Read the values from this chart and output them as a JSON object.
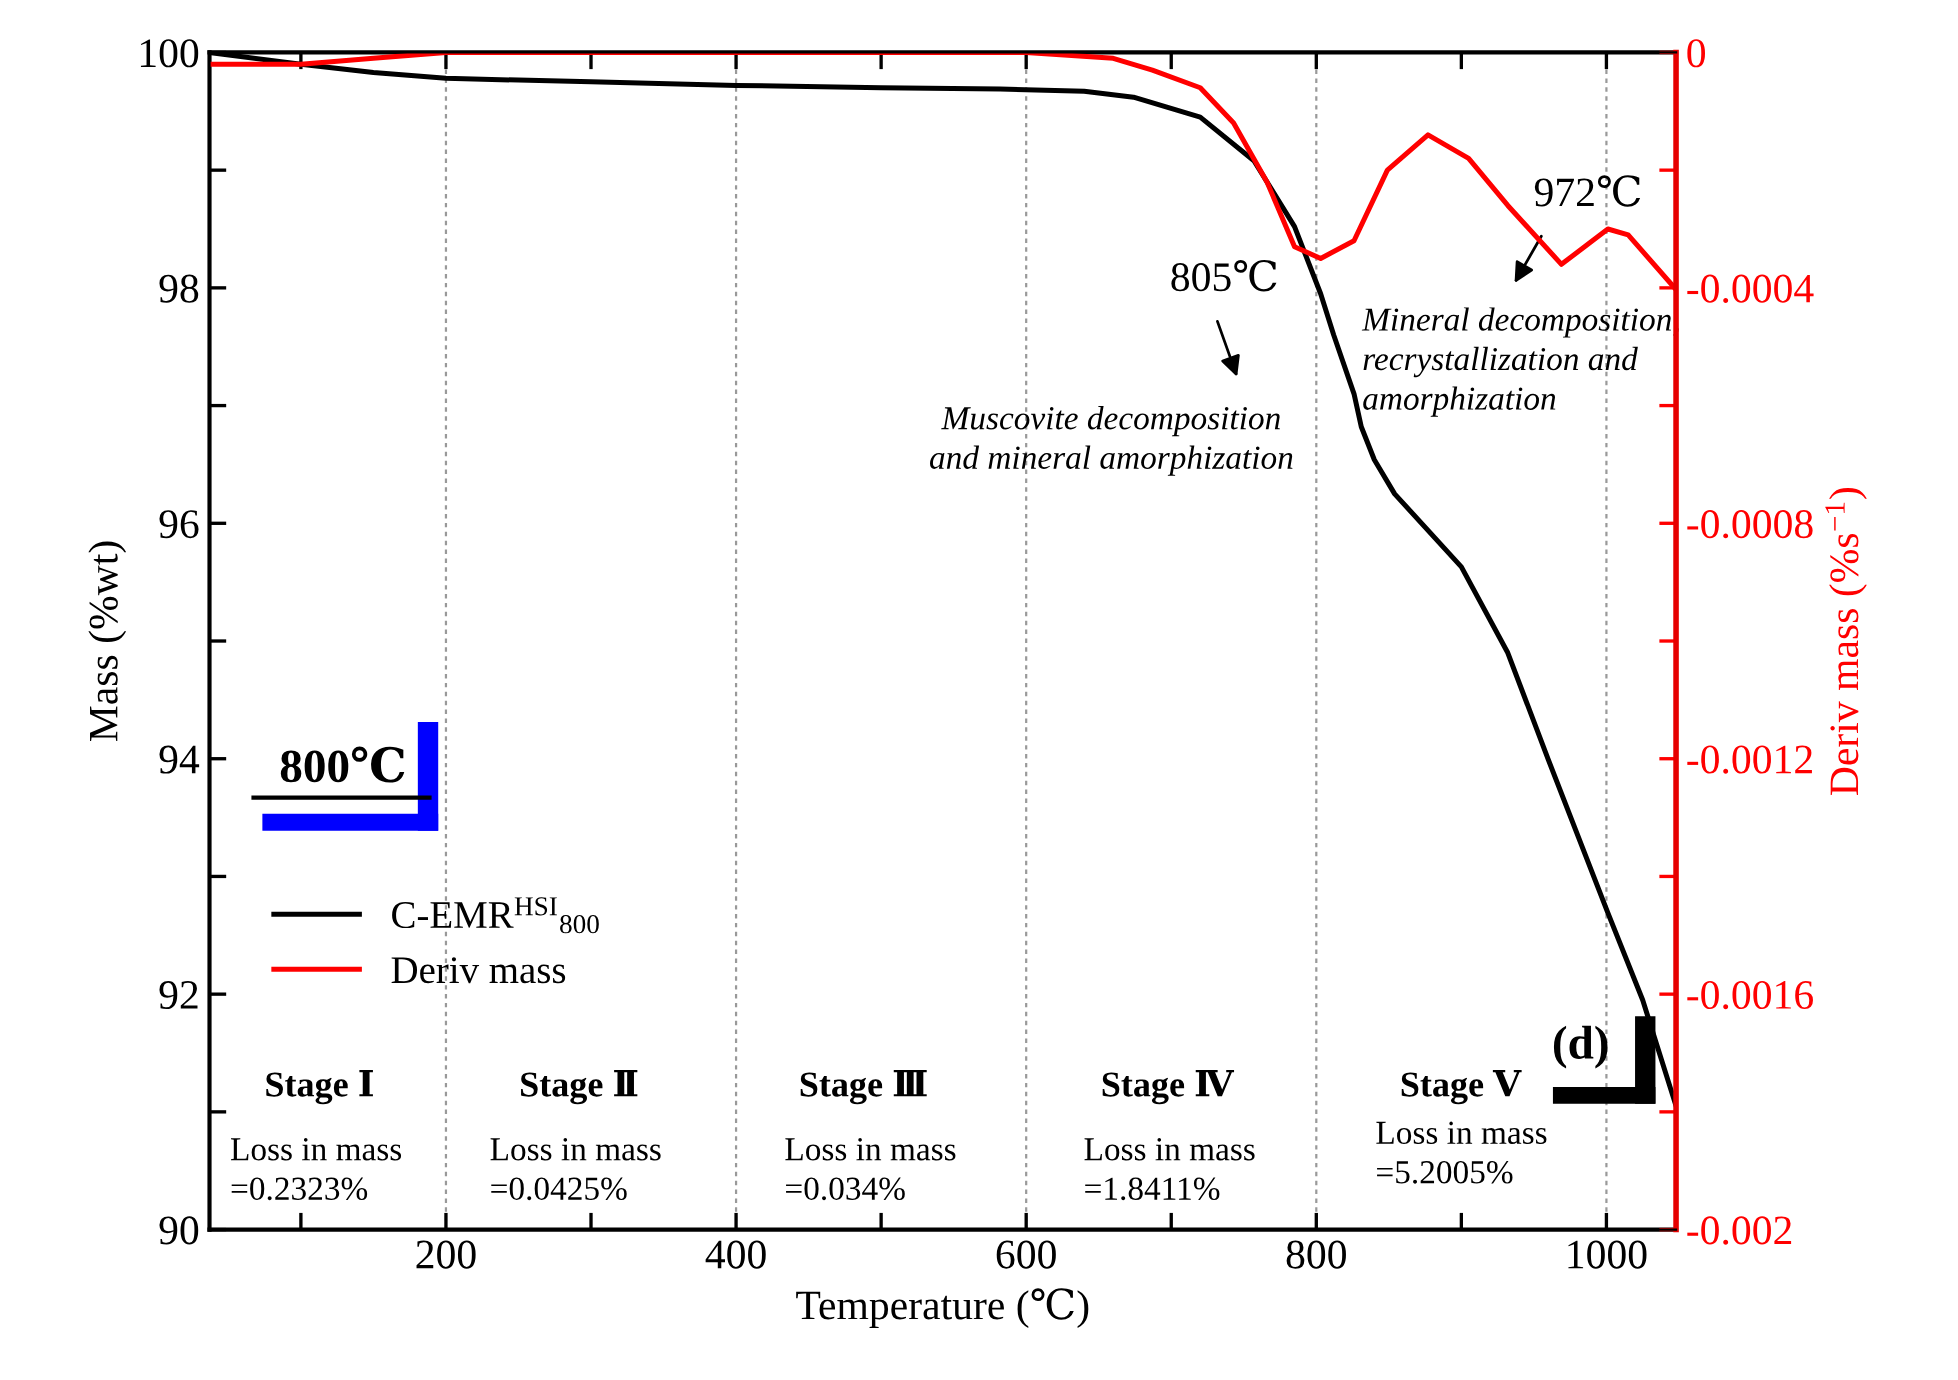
{
  "chart_data": {
    "type": "line",
    "xlabel": "Temperature (℃)",
    "ylabel": "Mass (%wt)",
    "y2label": "Deriv mass (%s$^{−1}$)",
    "xlim": [
      37,
      1048
    ],
    "xticks": [
      {
        "value": 100,
        "label": null
      },
      200,
      {
        "value": 300,
        "label": null
      },
      400,
      {
        "value": 500,
        "label": null
      },
      600,
      {
        "value": 700,
        "label": null
      },
      800,
      {
        "value": 900,
        "label": null
      },
      1000
    ],
    "ylim": [
      90,
      100
    ],
    "yticks": [
      90,
      {
        "value": 91,
        "label": null
      },
      92,
      {
        "value": 93,
        "label": null
      },
      94,
      {
        "value": 95,
        "label": null
      },
      96,
      {
        "value": 97,
        "label": null
      },
      98,
      {
        "value": 99,
        "label": null
      },
      100
    ],
    "y2lim": [
      -0.002,
      0
    ],
    "y2ticks": [
      -0.002,
      {
        "value": -0.0018,
        "label": null
      },
      -0.0016,
      {
        "value": -0.0014,
        "label": null
      },
      -0.0012,
      {
        "value": -0.001,
        "label": null
      },
      -0.0008,
      {
        "value": -0.0006,
        "label": null
      },
      -0.0004,
      {
        "value": -0.0002,
        "label": null
      },
      0
    ],
    "grid": "x",
    "legend": "left",
    "series": [
      {
        "name": "C-EMR$^{HSI}$$_{800}$",
        "color": "#000000",
        "x": [
          37,
          100,
          150,
          200,
          300,
          400,
          500,
          582,
          640,
          674,
          720,
          757,
          785,
          803,
          812,
          826,
          831,
          840,
          854,
          900,
          932,
          960,
          1001,
          1025,
          1048
        ],
        "values": [
          100.0,
          99.9,
          99.83,
          99.78,
          99.75,
          99.72,
          99.7,
          99.69,
          99.67,
          99.62,
          99.45,
          99.08,
          98.52,
          97.95,
          97.6,
          97.1,
          96.82,
          96.54,
          96.25,
          95.63,
          94.9,
          93.99,
          92.69,
          91.95,
          91.05
        ]
      },
      {
        "name": "Deriv mass",
        "color": "#ff0000",
        "axis": "y2",
        "x": [
          37,
          100,
          150,
          200,
          300,
          400,
          500,
          600,
          660,
          687,
          720,
          743,
          766,
          785,
          803,
          826,
          849,
          877,
          905,
          932,
          969,
          1001,
          1015,
          1047
        ],
        "values": [
          -2e-05,
          -2e-05,
          -1e-05,
          0,
          0,
          0,
          0,
          0,
          -1e-05,
          -3e-05,
          -6e-05,
          -0.00012,
          -0.00022,
          -0.00033,
          -0.00035,
          -0.00032,
          -0.0002,
          -0.00014,
          -0.00018,
          -0.00026,
          -0.00036,
          -0.0003,
          -0.00031,
          -0.0004
        ]
      }
    ],
    "annotations": [
      "800℃",
      "(d)",
      "805℃",
      "972℃",
      "Muscovite decomposition\nand mineral amorphization",
      "Mineral decomposition,\nrecrystallization and\namorphization",
      "Stage Ⅰ",
      "Stage Ⅱ",
      "Stage Ⅲ",
      "Stage Ⅳ",
      "Stage Ⅴ",
      "Loss in mass\n=0.2323%",
      "Loss in mass\n=0.0425%",
      "Loss in mass\n=0.034%",
      "Loss in mass\n=1.8411%",
      "Loss in mass\n=5.2005%"
    ]
  }
}
